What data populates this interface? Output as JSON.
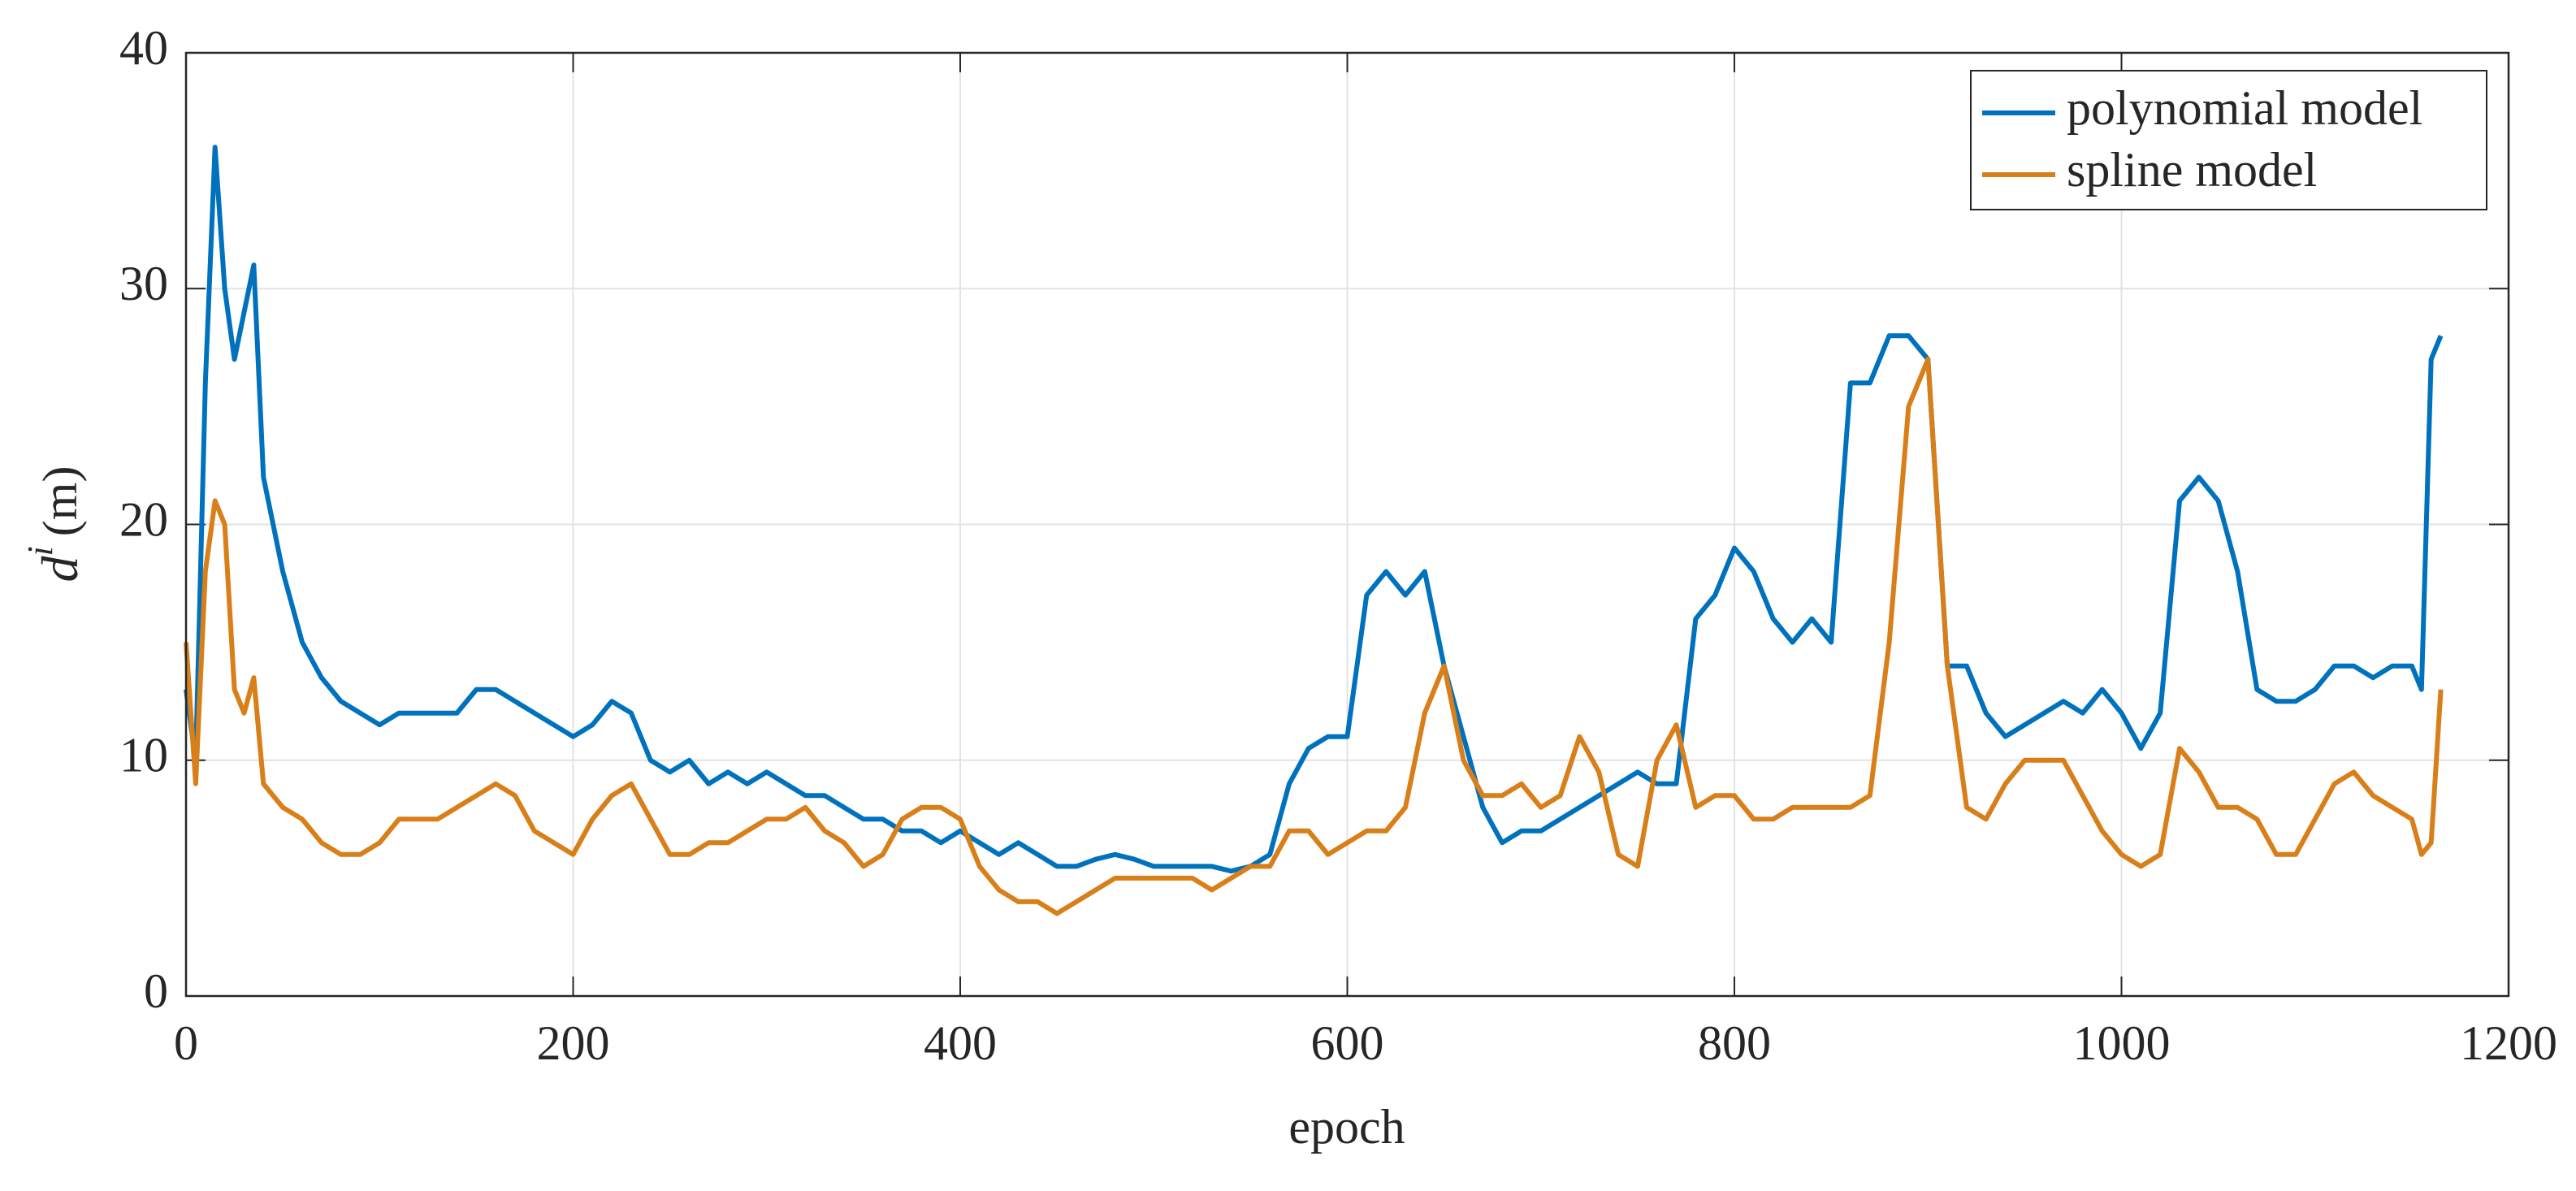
{
  "chart_data": {
    "type": "line",
    "x_label": "epoch",
    "y_label": {
      "base": "d",
      "superscript": "i",
      "unit": "(m)"
    },
    "x": [
      0,
      5,
      10,
      15,
      20,
      25,
      30,
      35,
      40,
      45,
      50,
      60,
      70,
      80,
      90,
      100,
      110,
      120,
      130,
      140,
      150,
      160,
      170,
      180,
      190,
      200,
      210,
      220,
      230,
      240,
      250,
      260,
      270,
      280,
      290,
      300,
      310,
      320,
      330,
      340,
      350,
      360,
      370,
      380,
      390,
      400,
      410,
      420,
      430,
      440,
      450,
      460,
      470,
      480,
      490,
      500,
      510,
      520,
      530,
      540,
      550,
      560,
      570,
      580,
      590,
      600,
      610,
      620,
      630,
      640,
      650,
      660,
      670,
      680,
      690,
      700,
      710,
      720,
      730,
      740,
      750,
      760,
      770,
      780,
      790,
      800,
      810,
      820,
      830,
      840,
      850,
      860,
      870,
      880,
      890,
      900,
      910,
      920,
      930,
      940,
      950,
      960,
      970,
      980,
      990,
      1000,
      1010,
      1020,
      1030,
      1040,
      1050,
      1060,
      1070,
      1080,
      1090,
      1100,
      1110,
      1120,
      1130,
      1140,
      1150,
      1155,
      1160,
      1165
    ],
    "series": [
      {
        "name": "polynomial model",
        "color": "#0072bd",
        "values": [
          13,
          10,
          26,
          36,
          30,
          27,
          29,
          31,
          22,
          20,
          18,
          15,
          13.5,
          12.5,
          12,
          11.5,
          12,
          12,
          12,
          12,
          13,
          13,
          12.5,
          12,
          11.5,
          11,
          11.5,
          12.5,
          12,
          10,
          9.5,
          10,
          9,
          9.5,
          9,
          9.5,
          9,
          8.5,
          8.5,
          8,
          7.5,
          7.5,
          7,
          7,
          6.5,
          7,
          6.5,
          6,
          6.5,
          6,
          5.5,
          5.5,
          5.8,
          6,
          5.8,
          5.5,
          5.5,
          5.5,
          5.5,
          5.3,
          5.5,
          6,
          9,
          10.5,
          11,
          11,
          17,
          18,
          17,
          18,
          14,
          11,
          8,
          6.5,
          7,
          7,
          7.5,
          8,
          8.5,
          9,
          9.5,
          9,
          9,
          16,
          17,
          19,
          18,
          16,
          15,
          16,
          15,
          26,
          26,
          28,
          28,
          27,
          14,
          14,
          12,
          11,
          11.5,
          12,
          12.5,
          12,
          13,
          12,
          10.5,
          12,
          21,
          22,
          21,
          18,
          13,
          12.5,
          12.5,
          13,
          14,
          14,
          13.5,
          14,
          14,
          13,
          27,
          28
        ]
      },
      {
        "name": "spline model",
        "color": "#d97f1a",
        "values": [
          15,
          9,
          18,
          21,
          20,
          13,
          12,
          13.5,
          9,
          8.5,
          8,
          7.5,
          6.5,
          6,
          6,
          6.5,
          7.5,
          7.5,
          7.5,
          8,
          8.5,
          9,
          8.5,
          7,
          6.5,
          6,
          7.5,
          8.5,
          9,
          7.5,
          6,
          6,
          6.5,
          6.5,
          7,
          7.5,
          7.5,
          8,
          7,
          6.5,
          5.5,
          6,
          7.5,
          8,
          8,
          7.5,
          5.5,
          4.5,
          4,
          4,
          3.5,
          4,
          4.5,
          5,
          5,
          5,
          5,
          5,
          4.5,
          5,
          5.5,
          5.5,
          7,
          7,
          6,
          6.5,
          7,
          7,
          8,
          12,
          14,
          10,
          8.5,
          8.5,
          9,
          8,
          8.5,
          11,
          9.5,
          6,
          5.5,
          10,
          11.5,
          8,
          8.5,
          8.5,
          7.5,
          7.5,
          8,
          8,
          8,
          8,
          8.5,
          15,
          25,
          27,
          14,
          8,
          7.5,
          9,
          10,
          10,
          10,
          8.5,
          7,
          6,
          5.5,
          6,
          10.5,
          9.5,
          8,
          8,
          7.5,
          6,
          6,
          7.5,
          9,
          9.5,
          8.5,
          8,
          7.5,
          6,
          6.5,
          13
        ]
      }
    ],
    "xlim": [
      0,
      1200
    ],
    "xticks": [
      0,
      200,
      400,
      600,
      800,
      1000,
      1200
    ],
    "ylim": [
      0,
      40
    ],
    "yticks": [
      0,
      10,
      20,
      30,
      40
    ],
    "grid": true,
    "legend": "top-right"
  }
}
